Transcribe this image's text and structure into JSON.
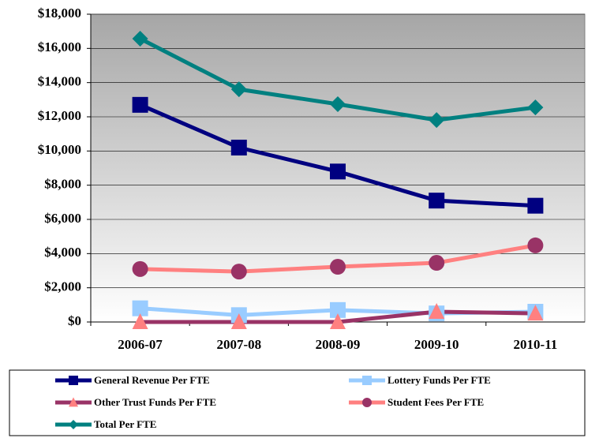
{
  "chart_data": {
    "type": "line",
    "categories": [
      "2006-07",
      "2007-08",
      "2008-09",
      "2009-10",
      "2010-11"
    ],
    "series": [
      {
        "name": "General Revenue Per FTE",
        "color": "#000080",
        "marker_color": "#000080",
        "marker": "square",
        "values": [
          12700,
          10200,
          8800,
          7100,
          6800
        ]
      },
      {
        "name": "Lottery Funds Per FTE",
        "color": "#99ccff",
        "marker_color": "#99ccff",
        "marker": "square",
        "values": [
          800,
          400,
          700,
          500,
          600
        ]
      },
      {
        "name": "Other Trust Funds Per FTE",
        "color": "#993366",
        "marker_color": "#ff8080",
        "marker": "triangle",
        "values": [
          0,
          0,
          0,
          600,
          500
        ]
      },
      {
        "name": "Student Fees Per FTE",
        "color": "#ff8080",
        "marker_color": "#993366",
        "marker": "circle",
        "values": [
          3100,
          2950,
          3230,
          3460,
          4480
        ]
      },
      {
        "name": "Total Per FTE",
        "color": "#008080",
        "marker_color": "#008080",
        "marker": "diamond",
        "values": [
          16570,
          13610,
          12740,
          11810,
          12550
        ]
      }
    ],
    "ylim": [
      0,
      18000
    ],
    "yticks": [
      {
        "value": 0,
        "label": "$0"
      },
      {
        "value": 2000,
        "label": "$2,000"
      },
      {
        "value": 4000,
        "label": "$4,000"
      },
      {
        "value": 6000,
        "label": "$6,000"
      },
      {
        "value": 8000,
        "label": "$8,000"
      },
      {
        "value": 10000,
        "label": "$10,000"
      },
      {
        "value": 12000,
        "label": "$12,000"
      },
      {
        "value": 14000,
        "label": "$14,000"
      },
      {
        "value": 16000,
        "label": "$16,000"
      },
      {
        "value": 18000,
        "label": "$18,000"
      }
    ],
    "grid": true,
    "legend": "bottom"
  }
}
